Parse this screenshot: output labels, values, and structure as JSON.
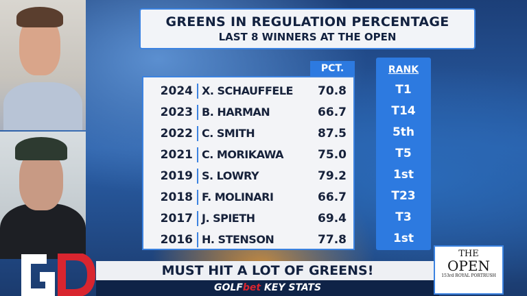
{
  "title": {
    "line1": "GREENS IN REGULATION PERCENTAGE",
    "line2": "LAST 8 WINNERS AT THE OPEN"
  },
  "headers": {
    "pct": "PCT.",
    "rank": "RANK"
  },
  "rows": [
    {
      "year": "2024",
      "name": "X. SCHAUFFELE",
      "pct": "70.8",
      "rank": "T1"
    },
    {
      "year": "2023",
      "name": "B. HARMAN",
      "pct": "66.7",
      "rank": "T14"
    },
    {
      "year": "2022",
      "name": "C. SMITH",
      "pct": "87.5",
      "rank": "5th"
    },
    {
      "year": "2021",
      "name": "C. MORIKAWA",
      "pct": "75.0",
      "rank": "T5"
    },
    {
      "year": "2019",
      "name": "S. LOWRY",
      "pct": "79.2",
      "rank": "1st"
    },
    {
      "year": "2018",
      "name": "F. MOLINARI",
      "pct": "66.7",
      "rank": "T23"
    },
    {
      "year": "2017",
      "name": "J. SPIETH",
      "pct": "69.4",
      "rank": "T3"
    },
    {
      "year": "2016",
      "name": "H. STENSON",
      "pct": "77.8",
      "rank": "1st"
    }
  ],
  "banner": {
    "headline": "MUST HIT A LOT OF GREENS!",
    "sub_golf": "GOLF",
    "sub_bet": "bet",
    "sub_rest": " KEY STATS"
  },
  "logos": {
    "gb": "GB",
    "open_line1": "THE",
    "open_line2": "OPEN",
    "open_line3": "153rd ROYAL PORTRUSH"
  },
  "colors": {
    "accent": "#2d7ae0",
    "navy": "#12213f",
    "red": "#d9252f"
  }
}
